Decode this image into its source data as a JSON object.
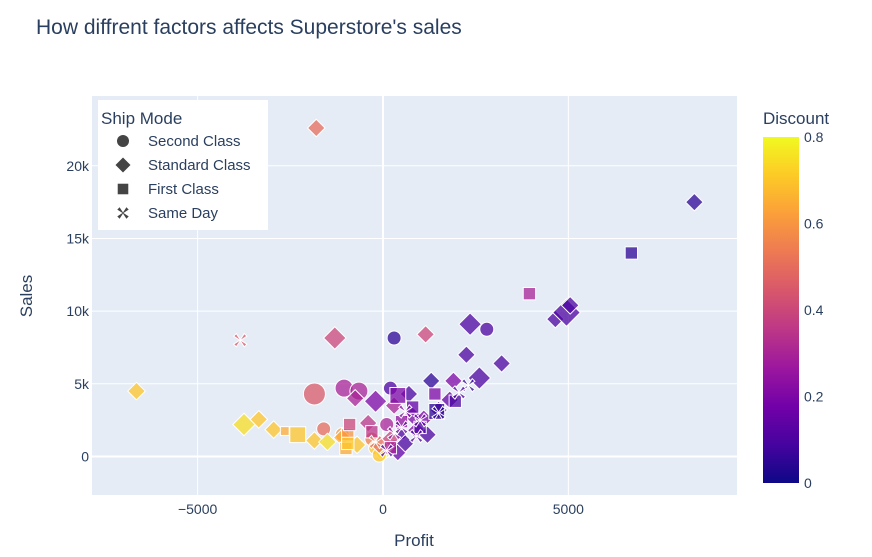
{
  "chart_data": {
    "type": "scatter",
    "title": "How diffrent factors affects Superstore's sales",
    "xlabel": "Profit",
    "ylabel": "Sales",
    "xlim": [
      -7850,
      9550
    ],
    "ylim": [
      -2650,
      24800
    ],
    "x_ticks": [
      -5000,
      0,
      5000
    ],
    "x_tick_labels": [
      "−5000",
      "0",
      "5000"
    ],
    "y_ticks": [
      0,
      5000,
      10000,
      15000,
      20000
    ],
    "y_tick_labels": [
      "0",
      "5k",
      "10k",
      "15k",
      "20k"
    ],
    "grid": true,
    "background": "#e5ecf6",
    "legend": {
      "title": "Ship Mode",
      "placement": "top-left",
      "items": [
        {
          "label": "Second Class",
          "symbol": "circle"
        },
        {
          "label": "Standard Class",
          "symbol": "diamond"
        },
        {
          "label": "First Class",
          "symbol": "square"
        },
        {
          "label": "Same Day",
          "symbol": "x"
        }
      ]
    },
    "colorbar": {
      "title": "Discount",
      "range": [
        0,
        0.8
      ],
      "ticks": [
        0,
        0.2,
        0.4,
        0.6,
        0.8
      ],
      "tick_labels": [
        "0",
        "0.2",
        "0.4",
        "0.6",
        "0.8"
      ],
      "colorscale": [
        "#0d0887",
        "#46039f",
        "#7201a8",
        "#9c179e",
        "#bd3786",
        "#d8576b",
        "#ed7953",
        "#fb9f3a",
        "#fdca26",
        "#f0f921"
      ]
    },
    "series": [
      {
        "ship_mode": "Second Class",
        "symbol": "circle",
        "points": [
          [
            -1850,
            4300,
            0.45,
            3
          ],
          [
            -1050,
            4700,
            0.3,
            2
          ],
          [
            -650,
            4500,
            0.3,
            2
          ],
          [
            300,
            8150,
            0.05,
            1
          ],
          [
            2800,
            8750,
            0.1,
            1
          ],
          [
            -1600,
            1900,
            0.5,
            1
          ],
          [
            -1100,
            1500,
            0.6,
            1
          ],
          [
            -300,
            1200,
            0.55,
            1
          ],
          [
            200,
            4700,
            0.1,
            1
          ],
          [
            100,
            2200,
            0.3,
            1
          ],
          [
            -200,
            600,
            0.7,
            1
          ],
          [
            0,
            300,
            0.8,
            1
          ],
          [
            500,
            1500,
            0.1,
            0
          ],
          [
            300,
            800,
            0.2,
            0
          ],
          [
            -100,
            100,
            0.7,
            1
          ]
        ]
      },
      {
        "ship_mode": "Standard Class",
        "symbol": "diamond",
        "points": [
          [
            8400,
            17500,
            0.05,
            1
          ],
          [
            -1800,
            22600,
            0.5,
            1
          ],
          [
            -1300,
            8150,
            0.4,
            2
          ],
          [
            1150,
            8400,
            0.4,
            1
          ],
          [
            2350,
            9100,
            0.1,
            2
          ],
          [
            3200,
            6400,
            0.1,
            1
          ],
          [
            2250,
            7000,
            0.1,
            1
          ],
          [
            4650,
            9450,
            0.1,
            1
          ],
          [
            4950,
            9900,
            0.1,
            3
          ],
          [
            5050,
            10400,
            0.1,
            1
          ],
          [
            2600,
            5400,
            0.1,
            2
          ],
          [
            1900,
            5200,
            0.2,
            1
          ],
          [
            -6650,
            4500,
            0.7,
            1
          ],
          [
            -3750,
            2200,
            0.75,
            2
          ],
          [
            -3350,
            2550,
            0.7,
            1
          ],
          [
            -2950,
            1850,
            0.7,
            1
          ],
          [
            -1850,
            1100,
            0.7,
            1
          ],
          [
            -1500,
            1000,
            0.75,
            1
          ],
          [
            -1100,
            1300,
            0.65,
            1
          ],
          [
            -700,
            800,
            0.7,
            1
          ],
          [
            -750,
            4000,
            0.3,
            1
          ],
          [
            -200,
            3800,
            0.2,
            2
          ],
          [
            300,
            3500,
            0.3,
            1
          ],
          [
            800,
            2800,
            0.2,
            1
          ],
          [
            1100,
            2600,
            0.2,
            1
          ],
          [
            1500,
            3200,
            0.15,
            1
          ],
          [
            1800,
            3900,
            0.15,
            1
          ],
          [
            1300,
            5200,
            0.05,
            1
          ],
          [
            700,
            4300,
            0.1,
            1
          ],
          [
            200,
            1200,
            0.4,
            1
          ],
          [
            -400,
            2300,
            0.35,
            1
          ],
          [
            900,
            1800,
            0.2,
            1
          ],
          [
            1200,
            1500,
            0.1,
            1
          ],
          [
            400,
            300,
            0.15,
            1
          ],
          [
            -100,
            800,
            0.5,
            1
          ],
          [
            600,
            900,
            0.1,
            1
          ]
        ]
      },
      {
        "ship_mode": "First Class",
        "symbol": "square",
        "points": [
          [
            6700,
            14000,
            0.05,
            1
          ],
          [
            3950,
            11200,
            0.3,
            1
          ],
          [
            -2300,
            1500,
            0.7,
            2
          ],
          [
            -2650,
            1750,
            0.65,
            0
          ],
          [
            -950,
            1500,
            0.6,
            1
          ],
          [
            -900,
            2200,
            0.4,
            1
          ],
          [
            -1000,
            550,
            0.65,
            1
          ],
          [
            -950,
            900,
            0.7,
            1
          ],
          [
            400,
            4200,
            0.2,
            2
          ],
          [
            1450,
            3100,
            0.05,
            2
          ],
          [
            1400,
            4300,
            0.2,
            1
          ],
          [
            1950,
            3800,
            0.1,
            1
          ],
          [
            800,
            3400,
            0.15,
            1
          ],
          [
            500,
            2400,
            0.25,
            1
          ],
          [
            1000,
            2000,
            0.1,
            1
          ],
          [
            -300,
            1700,
            0.35,
            1
          ],
          [
            200,
            600,
            0.3,
            1
          ]
        ]
      },
      {
        "ship_mode": "Same Day",
        "symbol": "x",
        "points": [
          [
            -3850,
            8000,
            0.45,
            1
          ],
          [
            2300,
            4900,
            0.05,
            1
          ],
          [
            2050,
            4400,
            0.1,
            1
          ],
          [
            1500,
            3000,
            0.05,
            1
          ],
          [
            1000,
            2500,
            0.15,
            1
          ],
          [
            600,
            3100,
            0.2,
            1
          ],
          [
            300,
            1600,
            0.25,
            1
          ],
          [
            -200,
            1000,
            0.5,
            1
          ],
          [
            900,
            1400,
            0.1,
            1
          ],
          [
            500,
            2000,
            0.15,
            1
          ],
          [
            100,
            400,
            0.1,
            1
          ]
        ]
      }
    ]
  }
}
